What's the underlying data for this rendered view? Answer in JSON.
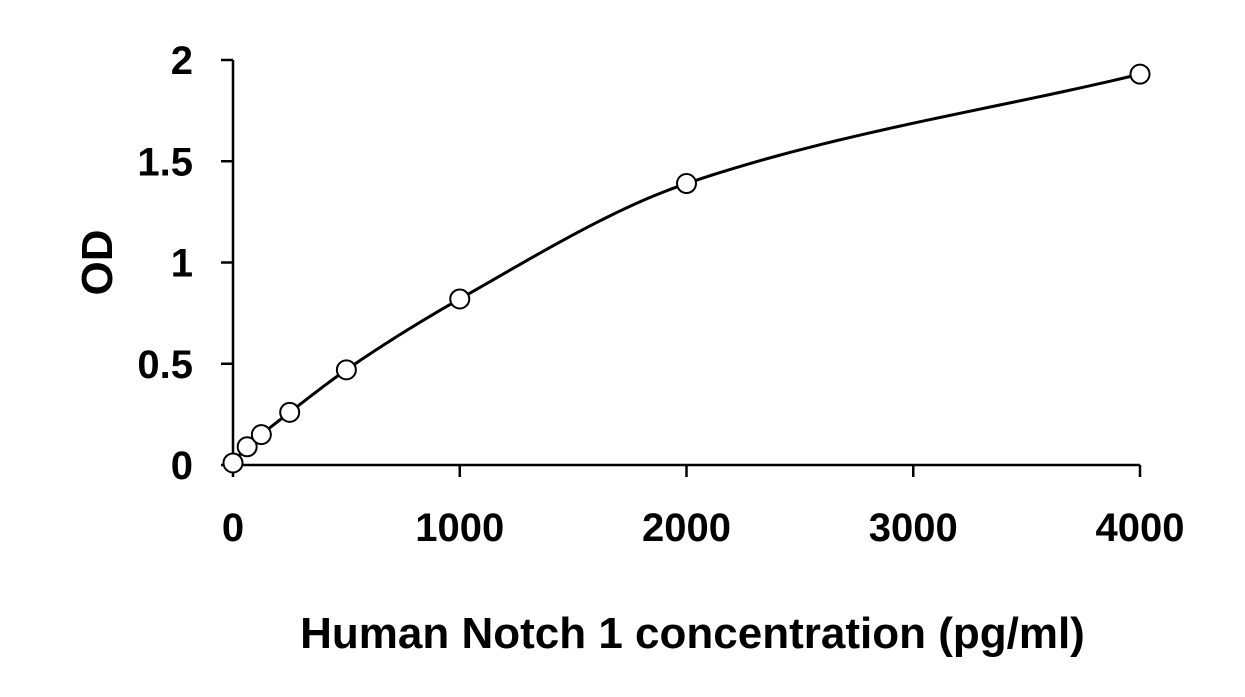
{
  "chart_data": {
    "type": "scatter",
    "title": "",
    "xlabel": "Human Notch 1 concentration (pg/ml)",
    "ylabel": "OD",
    "xlim": [
      0,
      4000
    ],
    "ylim": [
      0,
      2
    ],
    "xticks": [
      0,
      1000,
      2000,
      3000,
      4000
    ],
    "yticks": [
      0,
      0.5,
      1,
      1.5,
      2
    ],
    "xtick_labels": [
      "0",
      "1000",
      "2000",
      "3000",
      "4000"
    ],
    "ytick_labels": [
      "0",
      "0.5",
      "1",
      "1.5",
      "2"
    ],
    "grid": false,
    "legend": "none",
    "series": [
      {
        "marker": "open-circle",
        "fit_curve": true,
        "x": [
          0,
          62.5,
          125,
          250,
          500,
          1000,
          2000,
          4000
        ],
        "y": [
          0.01,
          0.09,
          0.15,
          0.26,
          0.47,
          0.82,
          1.39,
          1.93
        ]
      }
    ],
    "colors": {
      "axis": "#000000",
      "curve": "#000000",
      "marker_stroke": "#000000",
      "marker_fill": "#ffffff"
    }
  }
}
